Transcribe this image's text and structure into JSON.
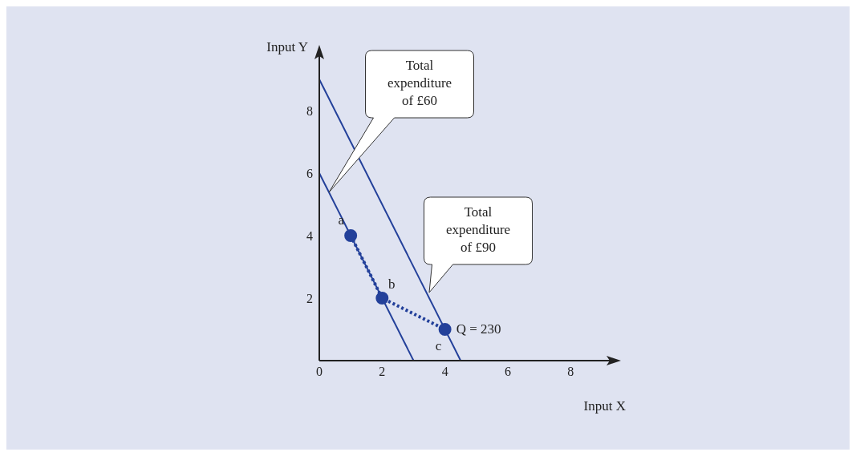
{
  "chart_data": {
    "type": "line",
    "xlabel": "Input X",
    "ylabel": "Input Y",
    "xlim": [
      0,
      9.5
    ],
    "ylim": [
      0,
      10
    ],
    "xticks": [
      0,
      2,
      4,
      6,
      8
    ],
    "yticks": [
      2,
      4,
      6,
      8
    ],
    "grid": false,
    "series": [
      {
        "color": "#23409a",
        "x": [
          0,
          3
        ],
        "values": [
          6,
          0
        ],
        "line_style": "solid",
        "marker": "none"
      },
      {
        "color": "#23409a",
        "x": [
          0,
          4.5
        ],
        "values": [
          9,
          0
        ],
        "line_style": "solid",
        "marker": "none"
      },
      {
        "color": "#23409a",
        "x": [
          1,
          2,
          4
        ],
        "values": [
          4,
          2,
          1
        ],
        "line_style": "dotted",
        "marker": "circle"
      }
    ],
    "annotations": [
      "Total expenditure of £60",
      "Total expenditure of £90",
      {
        "text": "a",
        "x": 1,
        "y": 4
      },
      {
        "text": "b",
        "x": 2,
        "y": 2
      },
      {
        "text": "c",
        "x": 4,
        "y": 1
      },
      {
        "text": "Q = 230",
        "x": 4,
        "y": 1
      }
    ]
  }
}
